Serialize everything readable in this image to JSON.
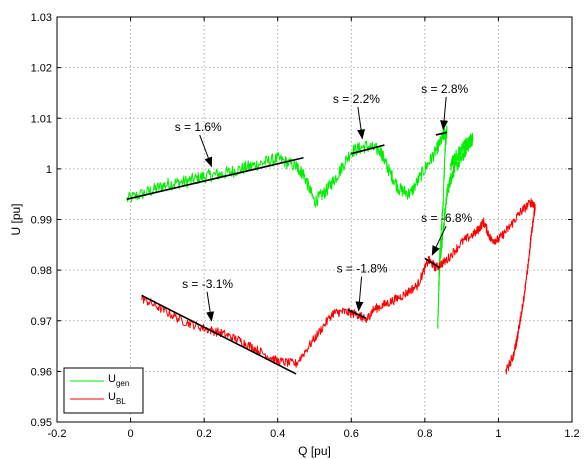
{
  "chart_data": {
    "type": "line",
    "xlabel": "Q [pu]",
    "ylabel": "U [pu]",
    "xlim": [
      -0.2,
      1.2
    ],
    "ylim": [
      0.95,
      1.03
    ],
    "xticks": [
      "-0.2",
      "0",
      "0.2",
      "0.4",
      "0.6",
      "0.8",
      "1",
      "1.2"
    ],
    "yticks": [
      "0.95",
      "0.96",
      "0.97",
      "0.98",
      "0.99",
      "1",
      "1.01",
      "1.02",
      "1.03"
    ],
    "grid": true,
    "legend_position": "bottom-left",
    "series": [
      {
        "name": "U_gen",
        "name_main": "U",
        "name_sub": "gen",
        "color": "#00ee00",
        "x": [
          -0.01,
          0.05,
          0.1,
          0.15,
          0.2,
          0.25,
          0.3,
          0.35,
          0.4,
          0.45,
          0.47,
          0.5,
          0.53,
          0.56,
          0.6,
          0.64,
          0.68,
          0.7,
          0.73,
          0.76,
          0.8,
          0.83,
          0.85,
          0.86,
          0.855,
          0.85,
          0.84,
          0.835,
          0.84,
          0.85,
          0.86,
          0.87,
          0.88,
          0.9,
          0.92,
          0.93,
          0.92,
          0.9,
          0.88,
          0.87
        ],
        "y": [
          0.994,
          0.9955,
          0.997,
          0.9975,
          0.9985,
          0.999,
          1.0,
          1.001,
          1.002,
          1.0005,
          0.999,
          0.9935,
          0.9955,
          0.9985,
          1.0035,
          1.0045,
          1.0035,
          1.0,
          0.996,
          0.995,
          1.0,
          1.0035,
          1.0065,
          1.0075,
          1.004,
          0.994,
          0.983,
          0.969,
          0.981,
          0.988,
          0.995,
          0.998,
          1.0,
          1.002,
          1.005,
          1.006,
          1.0055,
          1.004,
          1.002,
          1.0005
        ],
        "noise": 0.0013
      },
      {
        "name": "U_BL",
        "name_main": "U",
        "name_sub": "BL",
        "color": "#ff0000",
        "x": [
          0.03,
          0.08,
          0.14,
          0.2,
          0.25,
          0.3,
          0.35,
          0.4,
          0.45,
          0.5,
          0.55,
          0.58,
          0.62,
          0.64,
          0.66,
          0.7,
          0.74,
          0.78,
          0.81,
          0.83,
          0.86,
          0.9,
          0.94,
          0.96,
          0.98,
          1.0,
          1.03,
          1.06,
          1.09,
          1.1,
          1.09,
          1.08,
          1.07,
          1.06,
          1.05,
          1.04,
          1.02
        ],
        "y": [
          0.9745,
          0.9725,
          0.97,
          0.9685,
          0.9675,
          0.966,
          0.964,
          0.962,
          0.9615,
          0.9665,
          0.9715,
          0.9718,
          0.9712,
          0.97,
          0.9722,
          0.9735,
          0.975,
          0.977,
          0.982,
          0.9805,
          0.982,
          0.9855,
          0.9875,
          0.9895,
          0.986,
          0.986,
          0.9885,
          0.9915,
          0.9935,
          0.9925,
          0.9875,
          0.9805,
          0.975,
          0.9705,
          0.966,
          0.963,
          0.96
        ],
        "noise": 0.0009
      }
    ],
    "fit_lines": [
      {
        "x": [
          -0.01,
          0.47
        ],
        "y": [
          0.994,
          1.0022
        ]
      },
      {
        "x": [
          0.6,
          0.69
        ],
        "y": [
          1.003,
          1.0047
        ]
      },
      {
        "x": [
          0.83,
          0.86
        ],
        "y": [
          1.0067,
          1.0072
        ]
      },
      {
        "x": [
          0.03,
          0.45
        ],
        "y": [
          0.975,
          0.9595
        ]
      },
      {
        "x": [
          0.59,
          0.64
        ],
        "y": [
          0.9722,
          0.9705
        ]
      },
      {
        "x": [
          0.8,
          0.84
        ],
        "y": [
          0.9823,
          0.9805
        ]
      }
    ],
    "annotations": [
      {
        "text": "s = 1.6%",
        "x": 0.12,
        "y": 1.0075,
        "arrow_to": [
          0.22,
          1.0005
        ]
      },
      {
        "text": "s = 2.2%",
        "x": 0.55,
        "y": 1.013,
        "arrow_to": [
          0.63,
          1.006
        ]
      },
      {
        "text": "s = 2.8%",
        "x": 0.79,
        "y": 1.015,
        "arrow_to": [
          0.85,
          1.0078
        ]
      },
      {
        "text": "s = -6.8%",
        "x": 0.79,
        "y": 0.9895,
        "arrow_to": [
          0.82,
          0.983
        ]
      },
      {
        "text": "s = -1.8%",
        "x": 0.56,
        "y": 0.9795,
        "arrow_to": [
          0.62,
          0.972
        ]
      },
      {
        "text": "s = -3.1%",
        "x": 0.14,
        "y": 0.9765,
        "arrow_to": [
          0.22,
          0.97
        ]
      }
    ]
  }
}
